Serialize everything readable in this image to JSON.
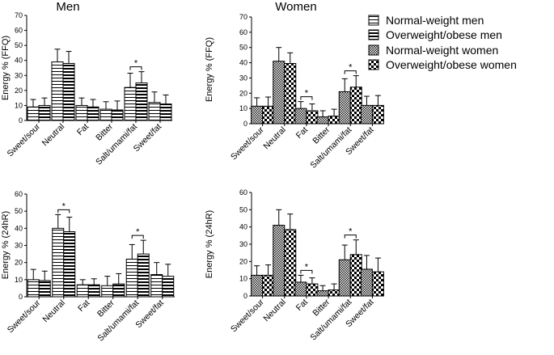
{
  "chart_data": [
    {
      "id": "men-ffq",
      "type": "bar",
      "title": "Men",
      "ylabel": "Energy % (FFQ)",
      "ylim": [
        0,
        70
      ],
      "yticks": [
        0,
        10,
        20,
        30,
        40,
        50,
        60,
        70
      ],
      "categories": [
        "Sweet/sour",
        "Neutral",
        "Fat",
        "Bitter",
        "Salt/umami/fat",
        "Sweet/fat"
      ],
      "series": [
        {
          "name": "Normal-weight men",
          "pattern": "hstripe",
          "values": [
            9,
            39,
            10,
            7.5,
            22,
            12
          ],
          "errors": [
            5,
            8.5,
            5,
            5,
            9.5,
            7
          ]
        },
        {
          "name": "Overweight/obese men",
          "pattern": "hbold",
          "values": [
            10,
            38,
            9,
            7,
            25,
            11
          ],
          "errors": [
            5,
            8,
            5,
            6,
            7.5,
            6
          ]
        }
      ],
      "significance": [
        {
          "category": "Salt/umami/fat",
          "label": "*"
        }
      ]
    },
    {
      "id": "women-ffq",
      "type": "bar",
      "title": "Women",
      "ylabel": "Energy % (FFQ)",
      "ylim": [
        0,
        70
      ],
      "yticks": [
        0,
        10,
        20,
        30,
        40,
        50,
        60,
        70
      ],
      "categories": [
        "Sweet/sour",
        "Neutral",
        "Fat",
        "Bitter",
        "Salt/umami/fat",
        "Sweet/fat"
      ],
      "series": [
        {
          "name": "Normal-weight women",
          "pattern": "fine",
          "values": [
            11.5,
            41,
            10,
            4.5,
            21,
            12
          ],
          "errors": [
            5.5,
            9,
            4.5,
            4,
            8.5,
            6
          ]
        },
        {
          "name": "Overweight/obese women",
          "pattern": "checker",
          "values": [
            11.5,
            39.5,
            8.5,
            5,
            24,
            12
          ],
          "errors": [
            6,
            7,
            4.5,
            4.5,
            7.5,
            6.5
          ]
        }
      ],
      "significance": [
        {
          "category": "Fat",
          "label": "*"
        },
        {
          "category": "Salt/umami/fat",
          "label": "*"
        }
      ]
    },
    {
      "id": "men-24hr",
      "type": "bar",
      "title": "",
      "ylabel": "Energy % (24hR)",
      "ylim": [
        0,
        60
      ],
      "yticks": [
        0,
        10,
        20,
        30,
        40,
        50,
        60
      ],
      "categories": [
        "Sweet/sour",
        "Neutral",
        "Fat",
        "Bitter",
        "Salt/umami/fat",
        "Sweet/fat"
      ],
      "series": [
        {
          "name": "Normal-weight men",
          "pattern": "hstripe",
          "values": [
            10,
            40,
            7,
            6.5,
            22,
            13
          ],
          "errors": [
            6,
            8,
            3,
            5.5,
            8.5,
            7
          ]
        },
        {
          "name": "Overweight/obese men",
          "pattern": "hbold",
          "values": [
            9.5,
            38,
            7,
            7.5,
            25,
            12
          ],
          "errors": [
            5.5,
            8.5,
            3.5,
            6,
            8,
            7
          ]
        }
      ],
      "significance": [
        {
          "category": "Neutral",
          "label": "*"
        },
        {
          "category": "Salt/umami/fat",
          "label": "*"
        }
      ]
    },
    {
      "id": "women-24hr",
      "type": "bar",
      "title": "",
      "ylabel": "Energy % (24hR)",
      "ylim": [
        0,
        60
      ],
      "yticks": [
        0,
        10,
        20,
        30,
        40,
        50,
        60
      ],
      "categories": [
        "Sweet/sour",
        "Neutral",
        "Fat",
        "Bitter",
        "Salt/umami/fat",
        "Sweet/fat"
      ],
      "series": [
        {
          "name": "Normal-weight women",
          "pattern": "fine",
          "values": [
            12,
            41,
            8,
            3,
            21,
            15.5
          ],
          "errors": [
            5.5,
            9,
            4,
            3,
            8.5,
            8
          ]
        },
        {
          "name": "Overweight/obese women",
          "pattern": "checker",
          "values": [
            12,
            38.5,
            7,
            3.5,
            24,
            14
          ],
          "errors": [
            6,
            9,
            3.5,
            3.5,
            8.5,
            8
          ]
        }
      ],
      "significance": [
        {
          "category": "Fat",
          "label": "*"
        },
        {
          "category": "Salt/umami/fat",
          "label": "*"
        }
      ]
    }
  ],
  "legend": {
    "items": [
      {
        "label": "Normal-weight men",
        "pattern": "hstripe"
      },
      {
        "label": "Overweight/obese men",
        "pattern": "hbold"
      },
      {
        "label": "Normal-weight women",
        "pattern": "fine"
      },
      {
        "label": "Overweight/obese women",
        "pattern": "checker"
      }
    ]
  }
}
